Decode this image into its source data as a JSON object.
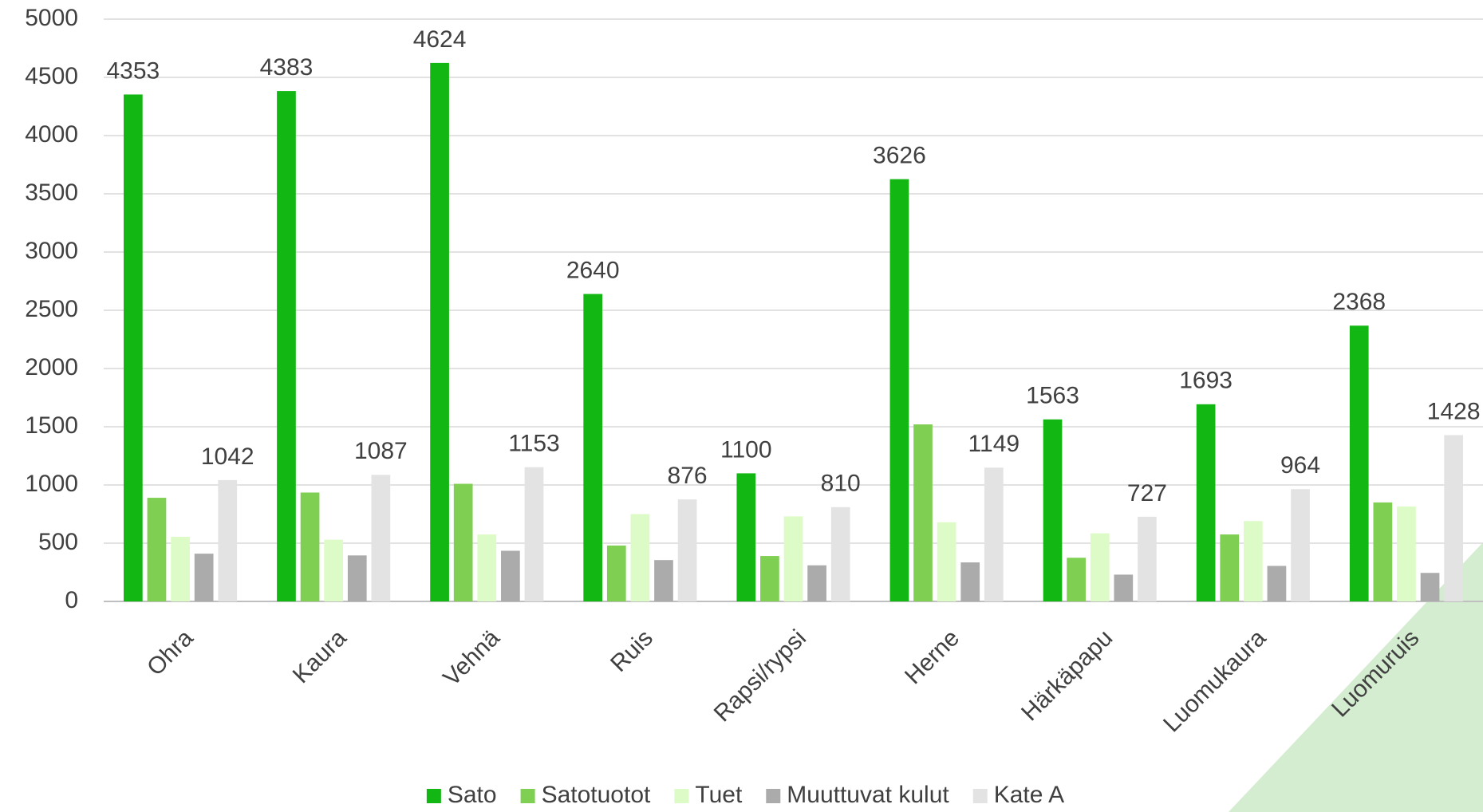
{
  "chart_data": {
    "type": "bar",
    "categories": [
      "Ohra",
      "Kaura",
      "Vehnä",
      "Ruis",
      "Rapsi/rypsi",
      "Herne",
      "Härkäpapu",
      "Luomukaura",
      "Luomuruis"
    ],
    "series": [
      {
        "name": "Sato",
        "color": "#13b713",
        "data_labels": true,
        "values": [
          4353,
          4383,
          4624,
          2640,
          1100,
          3626,
          1563,
          1693,
          2368
        ]
      },
      {
        "name": "Satotuotot",
        "color": "#7fcf52",
        "data_labels": false,
        "values": [
          890,
          935,
          1010,
          480,
          390,
          1520,
          375,
          575,
          850
        ]
      },
      {
        "name": "Tuet",
        "color": "#ddfbc6",
        "data_labels": false,
        "values": [
          555,
          530,
          575,
          750,
          730,
          680,
          585,
          690,
          815
        ]
      },
      {
        "name": "Muuttuvat kulut",
        "color": "#ababab",
        "data_labels": false,
        "values": [
          410,
          395,
          435,
          355,
          310,
          335,
          230,
          305,
          245
        ]
      },
      {
        "name": "Kate A",
        "color": "#e3e3e3",
        "data_labels": true,
        "values": [
          1042,
          1087,
          1153,
          876,
          810,
          1149,
          727,
          964,
          1428
        ]
      }
    ],
    "ylim": [
      0,
      5000
    ],
    "yticks": [
      0,
      500,
      1000,
      1500,
      2000,
      2500,
      3000,
      3500,
      4000,
      4500,
      5000
    ],
    "grid": true,
    "legend": "bottom"
  }
}
